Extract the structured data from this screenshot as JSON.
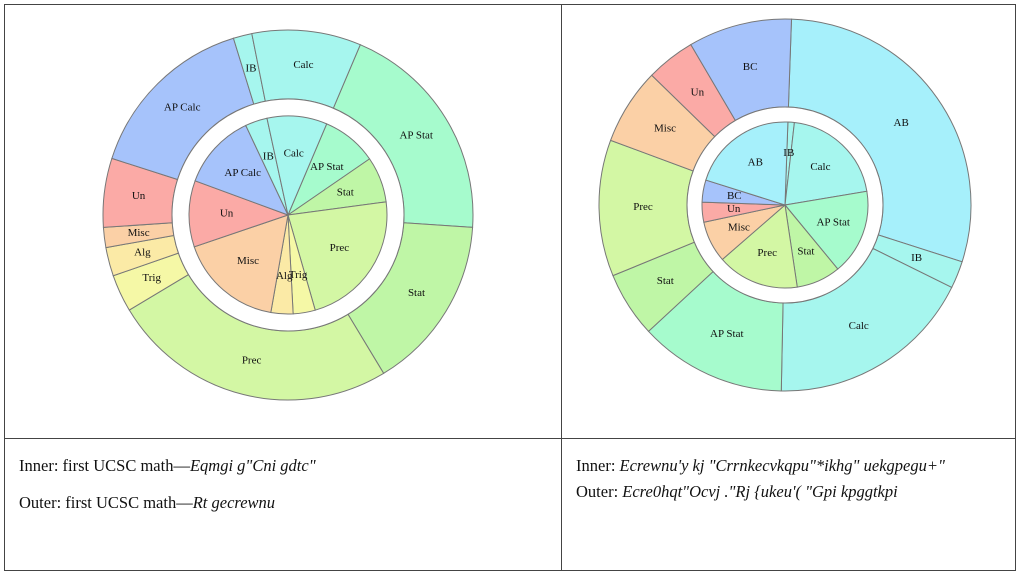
{
  "colors": {
    "AP Calc": "#a6c3fb",
    "BC": "#a6c3fb",
    "IB": "#a6f6ee",
    "Calc": "#a6f6ee",
    "AB": "#a6f0fb",
    "AP Stat": "#a6fbcd",
    "Stat": "#bff6a6",
    "Prec": "#d3f7a4",
    "Trig": "#f5f8a6",
    "Alg": "#fbeaa6",
    "Misc": "#fbd0a6",
    "Un": "#fbaaa6",
    "stroke": "#777777",
    "ring_gap": "#ffffff"
  },
  "chart_data": [
    {
      "type": "pie",
      "subtype": "nested-donut",
      "inner": [
        {
          "label": "AP Stat",
          "value": 17.5
        },
        {
          "label": "Stat",
          "value": 14.5
        },
        {
          "label": "Prec",
          "value": 44
        },
        {
          "label": "Trig",
          "value": 7
        },
        {
          "label": "Alg",
          "value": 7
        },
        {
          "label": "Misc",
          "value": 33
        },
        {
          "label": "Un",
          "value": 21
        },
        {
          "label": "AP Calc",
          "value": 24
        },
        {
          "label": "IB",
          "value": 7
        },
        {
          "label": "Calc",
          "value": 19
        }
      ],
      "outer": [
        {
          "label": "AP Stat",
          "value": 78.5
        },
        {
          "label": "Stat",
          "value": 61
        },
        {
          "label": "Prec",
          "value": 100
        },
        {
          "label": "Trig",
          "value": 13
        },
        {
          "label": "Alg",
          "value": 10
        },
        {
          "label": "Misc",
          "value": 7
        },
        {
          "label": "Un",
          "value": 24
        },
        {
          "label": "AP Calc",
          "value": 61
        },
        {
          "label": "IB",
          "value": 6.5
        },
        {
          "label": "Calc",
          "value": 38
        }
      ]
    },
    {
      "type": "pie",
      "subtype": "nested-donut",
      "inner": [
        {
          "label": "IB",
          "value": 4.5
        },
        {
          "label": "Calc",
          "value": 74
        },
        {
          "label": "AP Stat",
          "value": 60
        },
        {
          "label": "Stat",
          "value": 31
        },
        {
          "label": "Prec",
          "value": 57.5
        },
        {
          "label": "Misc",
          "value": 29
        },
        {
          "label": "Un",
          "value": 14
        },
        {
          "label": "BC",
          "value": 15.5
        },
        {
          "label": "AB",
          "value": 74.5
        }
      ],
      "outer": [
        {
          "label": "AB",
          "value": 124
        },
        {
          "label": "IB",
          "value": 10
        },
        {
          "label": "Calc",
          "value": 76
        },
        {
          "label": "AP Stat",
          "value": 54
        },
        {
          "label": "Stat",
          "value": 24
        },
        {
          "label": "Prec",
          "value": 50
        },
        {
          "label": "Misc",
          "value": 28
        },
        {
          "label": "Un",
          "value": 18
        },
        {
          "label": "BC",
          "value": 38
        }
      ]
    }
  ],
  "captions": {
    "left": {
      "inner_prefix": "Inner: first UCSC math",
      "inner_dash": "—",
      "inner_italic": "Eqmgi g\"Cni gdtc\"",
      "outer_prefix": "Outer: first UCSC math",
      "outer_dash": "—",
      "outer_italic": "Rt gecrewnu"
    },
    "right": {
      "inner_prefix": "Inner: ",
      "inner_italic": "Ecrewnu'y kj \"Crrnkecvkqpu\"*ikhg\" uekgpegu+\"",
      "outer_prefix": "Outer: ",
      "outer_italic": "Ecre0hqt\"Ocvj .\"Rj {ukeu'( \"Gpi kpggtkpi"
    }
  }
}
